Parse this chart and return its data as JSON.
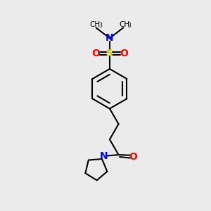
{
  "background_color": "#ebebeb",
  "bond_color": "#000000",
  "S_color": "#c8c800",
  "N_color": "#0000ff",
  "O_color": "#ff0000",
  "figsize": [
    3.0,
    3.0
  ],
  "dpi": 100,
  "xlim": [
    0,
    10
  ],
  "ylim": [
    0,
    10
  ]
}
